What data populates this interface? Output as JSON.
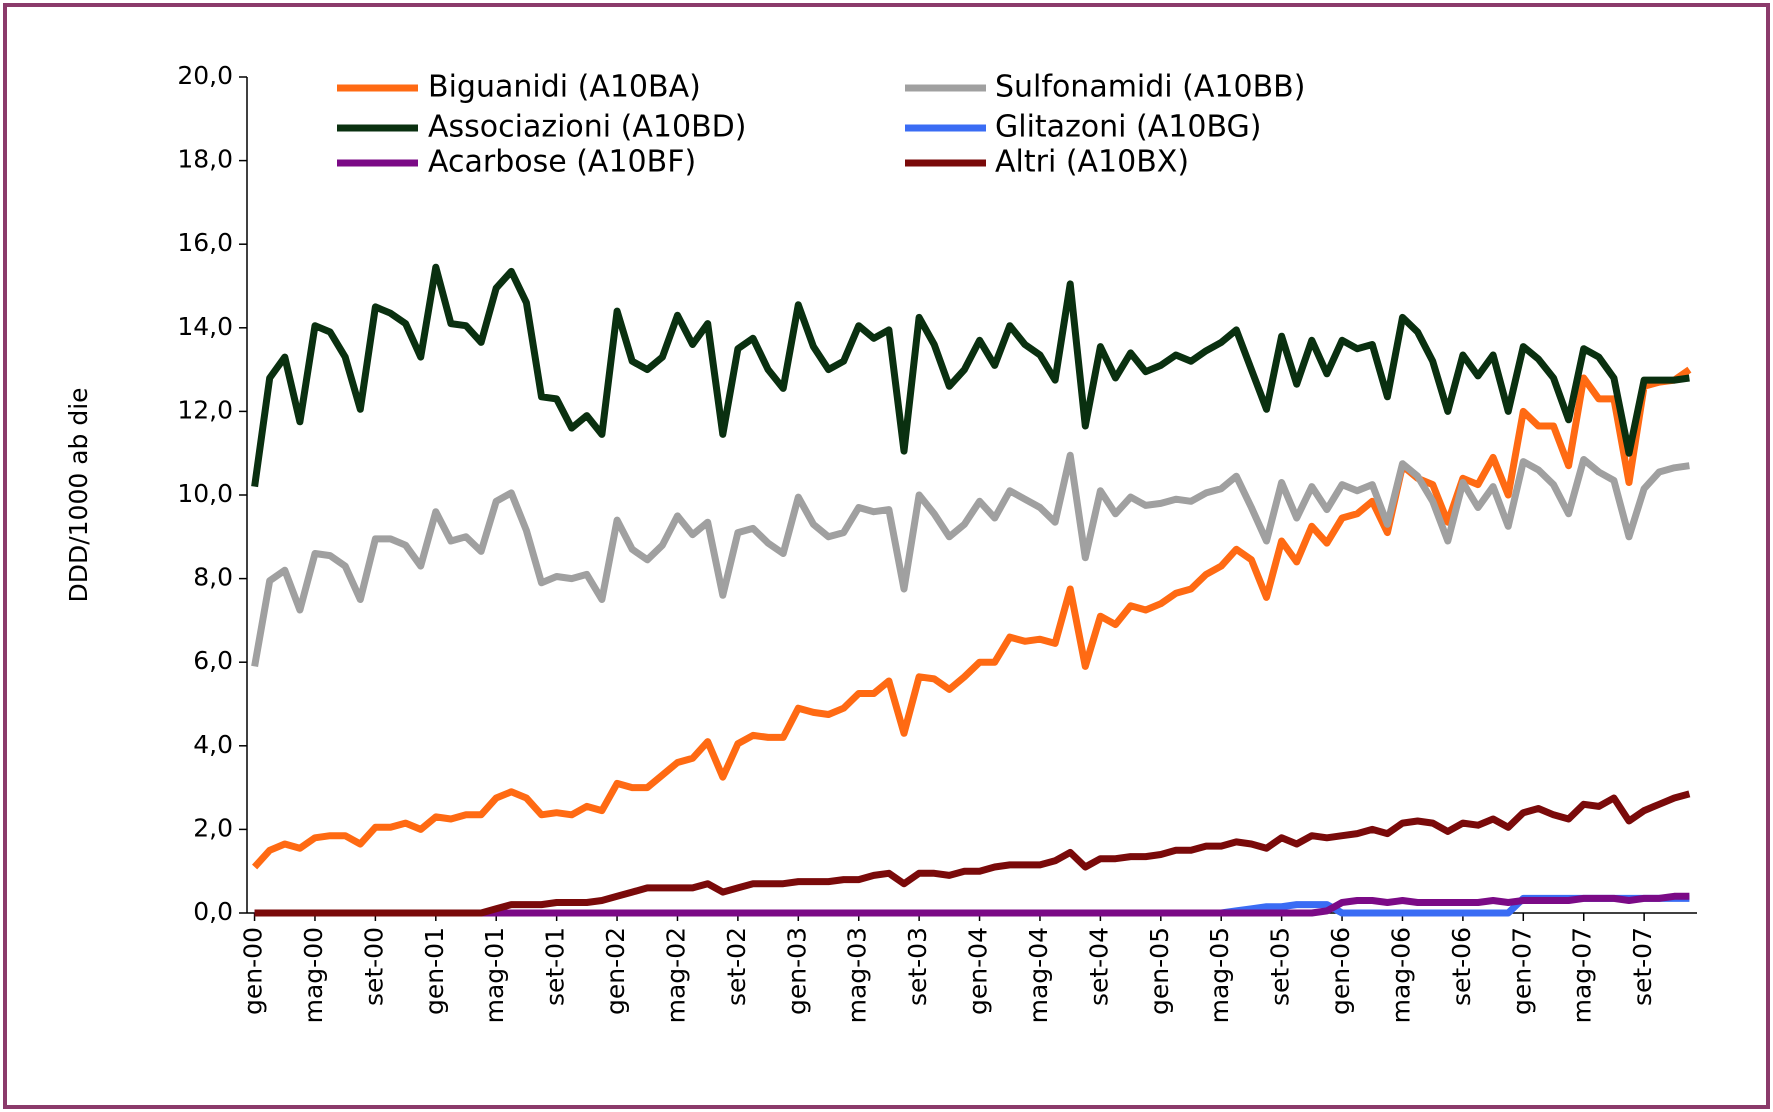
{
  "chart_data": {
    "type": "line",
    "y_label": "DDD/1000 ab die",
    "categories": [
      "gen-00",
      null,
      null,
      null,
      "mag-00",
      null,
      null,
      null,
      "set-00",
      null,
      null,
      null,
      "gen-01",
      null,
      null,
      null,
      "mag-01",
      null,
      null,
      null,
      "set-01",
      null,
      null,
      null,
      "gen-02",
      null,
      null,
      null,
      "mag-02",
      null,
      null,
      null,
      "set-02",
      null,
      null,
      null,
      "gen-03",
      null,
      null,
      null,
      "mag-03",
      null,
      null,
      null,
      "set-03",
      null,
      null,
      null,
      "gen-04",
      null,
      null,
      null,
      "mag-04",
      null,
      null,
      null,
      "set-04",
      null,
      null,
      null,
      "gen-05",
      null,
      null,
      null,
      "mag-05",
      null,
      null,
      null,
      "set-05",
      null,
      null,
      null,
      "gen-06",
      null,
      null,
      null,
      "mag-06",
      null,
      null,
      null,
      "set-06",
      null,
      null,
      null,
      "gen-07",
      null,
      null,
      null,
      "mag-07",
      null,
      null,
      null,
      "set-07",
      null,
      null,
      null
    ],
    "series": [
      {
        "name": "Biguanidi (A10BA)",
        "color": "#ff6a13",
        "values": [
          1.1,
          1.5,
          1.65,
          1.55,
          1.8,
          1.85,
          1.85,
          1.65,
          2.05,
          2.05,
          2.15,
          2.0,
          2.3,
          2.25,
          2.35,
          2.35,
          2.75,
          2.9,
          2.75,
          2.35,
          2.4,
          2.35,
          2.55,
          2.45,
          3.1,
          3.0,
          3.0,
          3.3,
          3.6,
          3.7,
          4.1,
          3.25,
          4.05,
          4.25,
          4.2,
          4.2,
          4.9,
          4.8,
          4.75,
          4.9,
          5.25,
          5.25,
          5.55,
          4.3,
          5.65,
          5.6,
          5.35,
          5.65,
          6.0,
          6.0,
          6.6,
          6.5,
          6.55,
          6.45,
          7.75,
          5.9,
          7.1,
          6.9,
          7.35,
          7.25,
          7.4,
          7.65,
          7.75,
          8.1,
          8.3,
          8.7,
          8.45,
          7.55,
          8.9,
          8.4,
          9.25,
          8.85,
          9.45,
          9.55,
          9.85,
          9.1,
          10.7,
          10.4,
          10.25,
          9.35,
          10.4,
          10.25,
          10.9,
          10.0,
          12.0,
          11.65,
          11.65,
          10.7,
          12.8,
          12.3,
          12.3,
          10.3,
          12.6,
          12.7,
          12.75,
          13.0
        ]
      },
      {
        "name": "Sulfonamidi (A10BB)",
        "color": "#a0a0a0",
        "values": [
          5.9,
          7.95,
          8.2,
          7.25,
          8.6,
          8.55,
          8.3,
          7.5,
          8.95,
          8.95,
          8.8,
          8.3,
          9.6,
          8.9,
          9.0,
          8.65,
          9.85,
          10.05,
          9.15,
          7.9,
          8.05,
          8.0,
          8.1,
          7.5,
          9.4,
          8.7,
          8.45,
          8.8,
          9.5,
          9.05,
          9.35,
          7.6,
          9.1,
          9.2,
          8.85,
          8.6,
          9.95,
          9.3,
          9.0,
          9.1,
          9.7,
          9.6,
          9.65,
          7.75,
          10.0,
          9.55,
          9.0,
          9.3,
          9.85,
          9.45,
          10.1,
          9.9,
          9.7,
          9.35,
          10.95,
          8.5,
          10.1,
          9.55,
          9.95,
          9.75,
          9.8,
          9.9,
          9.85,
          10.05,
          10.15,
          10.45,
          9.7,
          8.9,
          10.3,
          9.45,
          10.2,
          9.65,
          10.25,
          10.1,
          10.25,
          9.3,
          10.75,
          10.45,
          9.85,
          8.9,
          10.3,
          9.7,
          10.2,
          9.25,
          10.8,
          10.6,
          10.25,
          9.55,
          10.85,
          10.55,
          10.35,
          9.0,
          10.15,
          10.55,
          10.65,
          10.7
        ]
      },
      {
        "name": "Associazioni (A10BD)",
        "color": "#0a3010",
        "values": [
          10.2,
          12.8,
          13.3,
          11.75,
          14.05,
          13.9,
          13.3,
          12.05,
          14.5,
          14.35,
          14.1,
          13.3,
          15.45,
          14.1,
          14.05,
          13.65,
          14.95,
          15.35,
          14.6,
          12.35,
          12.3,
          11.6,
          11.9,
          11.45,
          14.4,
          13.2,
          13.0,
          13.3,
          14.3,
          13.6,
          14.1,
          11.45,
          13.5,
          13.75,
          13.0,
          12.55,
          14.55,
          13.55,
          13.0,
          13.2,
          14.05,
          13.75,
          13.95,
          11.05,
          14.25,
          13.6,
          12.6,
          13.0,
          13.7,
          13.1,
          14.05,
          13.6,
          13.35,
          12.75,
          15.05,
          11.65,
          13.55,
          12.8,
          13.4,
          12.95,
          13.1,
          13.35,
          13.2,
          13.45,
          13.65,
          13.95,
          13.0,
          12.05,
          13.8,
          12.65,
          13.7,
          12.9,
          13.7,
          13.5,
          13.6,
          12.35,
          14.25,
          13.9,
          13.2,
          12.0,
          13.35,
          12.85,
          13.35,
          12.0,
          13.55,
          13.25,
          12.8,
          11.8,
          13.5,
          13.3,
          12.8,
          11.0,
          12.75,
          12.75,
          12.75,
          12.8
        ]
      },
      {
        "name": "Glitazoni (A10BG)",
        "color": "#3a6cf4",
        "values": [
          0,
          0,
          0,
          0,
          0,
          0,
          0,
          0,
          0,
          0,
          0,
          0,
          0,
          0,
          0,
          0,
          0,
          0,
          0,
          0,
          0,
          0,
          0,
          0,
          0,
          0,
          0,
          0,
          0,
          0,
          0,
          0,
          0,
          0,
          0,
          0,
          0,
          0,
          0,
          0,
          0,
          0,
          0,
          0,
          0,
          0,
          0,
          0,
          0,
          0,
          0,
          0,
          0,
          0,
          0,
          0,
          0,
          0,
          0,
          0,
          0,
          0,
          0,
          0,
          0,
          0.05,
          0.1,
          0.15,
          0.15,
          0.2,
          0.2,
          0.2,
          0,
          0,
          0,
          0,
          0,
          0,
          0,
          0,
          0,
          0,
          0,
          0,
          0.35,
          0.35,
          0.35,
          0.35,
          0.35,
          0.35,
          0.35,
          0.35,
          0.35,
          0.35,
          0.35,
          0.35
        ]
      },
      {
        "name": "Acarbose (A10BF)",
        "color": "#7b0a86",
        "values": [
          0,
          0,
          0,
          0,
          0,
          0,
          0,
          0,
          0,
          0,
          0,
          0,
          0,
          0,
          0,
          0,
          0,
          0,
          0,
          0,
          0,
          0,
          0,
          0,
          0,
          0,
          0,
          0,
          0,
          0,
          0,
          0,
          0,
          0,
          0,
          0,
          0,
          0,
          0,
          0,
          0,
          0,
          0,
          0,
          0,
          0,
          0,
          0,
          0,
          0,
          0,
          0,
          0,
          0,
          0,
          0,
          0,
          0,
          0,
          0,
          0,
          0,
          0,
          0,
          0,
          0,
          0,
          0,
          0,
          0,
          0,
          0.05,
          0.25,
          0.3,
          0.3,
          0.25,
          0.3,
          0.25,
          0.25,
          0.25,
          0.25,
          0.25,
          0.3,
          0.25,
          0.3,
          0.3,
          0.3,
          0.3,
          0.35,
          0.35,
          0.35,
          0.3,
          0.35,
          0.35,
          0.4,
          0.4
        ]
      },
      {
        "name": "Altri (A10BX)",
        "color": "#7a0a0a",
        "values": [
          0,
          0,
          0,
          0,
          0,
          0,
          0,
          0,
          0,
          0,
          0,
          0,
          0,
          0,
          0,
          0,
          0.1,
          0.2,
          0.2,
          0.2,
          0.25,
          0.25,
          0.25,
          0.3,
          0.4,
          0.5,
          0.6,
          0.6,
          0.6,
          0.6,
          0.7,
          0.5,
          0.6,
          0.7,
          0.7,
          0.7,
          0.75,
          0.75,
          0.75,
          0.8,
          0.8,
          0.9,
          0.95,
          0.7,
          0.95,
          0.95,
          0.9,
          1.0,
          1.0,
          1.1,
          1.15,
          1.15,
          1.15,
          1.25,
          1.45,
          1.1,
          1.3,
          1.3,
          1.35,
          1.35,
          1.4,
          1.5,
          1.5,
          1.6,
          1.6,
          1.7,
          1.65,
          1.55,
          1.8,
          1.65,
          1.85,
          1.8,
          1.85,
          1.9,
          2.0,
          1.9,
          2.15,
          2.2,
          2.15,
          1.95,
          2.15,
          2.1,
          2.25,
          2.05,
          2.4,
          2.5,
          2.35,
          2.25,
          2.6,
          2.55,
          2.75,
          2.2,
          2.45,
          2.6,
          2.75,
          2.85
        ]
      }
    ],
    "ylim": [
      0,
      20
    ],
    "yticks": [
      {
        "value": 0,
        "label": "0,0"
      },
      {
        "value": 2,
        "label": "2,0"
      },
      {
        "value": 4,
        "label": "4,0"
      },
      {
        "value": 6,
        "label": "6,0"
      },
      {
        "value": 8,
        "label": "8,0"
      },
      {
        "value": 10,
        "label": "10,0"
      },
      {
        "value": 12,
        "label": "12,0"
      },
      {
        "value": 14,
        "label": "14,0"
      },
      {
        "value": 16,
        "label": "16,0"
      },
      {
        "value": 18,
        "label": "18,0"
      },
      {
        "value": 20,
        "label": "20,0"
      }
    ],
    "grid": false
  }
}
